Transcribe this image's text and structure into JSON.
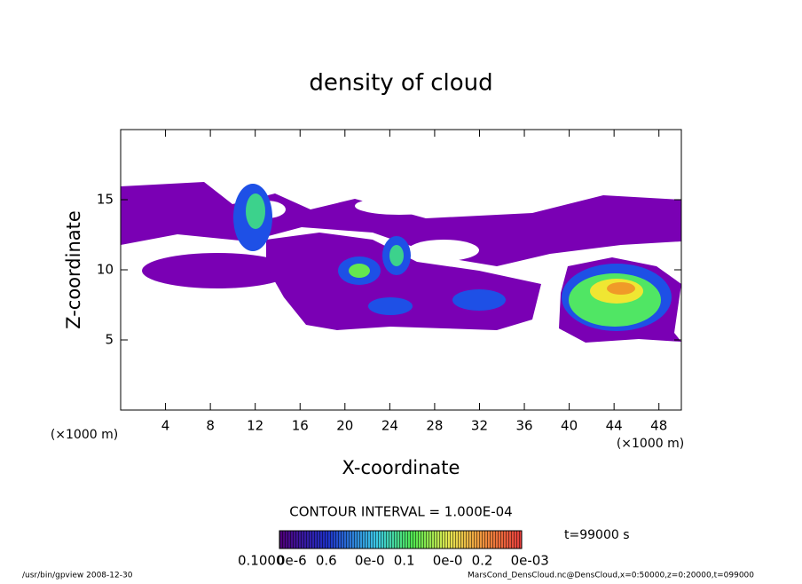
{
  "chart_data": {
    "type": "contour",
    "title": "density of cloud",
    "x_label": "X-coordinate",
    "y_label": "Z-coordinate",
    "x_unit_left": "(×1000 m)",
    "x_unit_right": "(×1000 m)",
    "xlim": [
      0,
      50
    ],
    "ylim": [
      0,
      20
    ],
    "xticks": [
      4,
      8,
      12,
      16,
      20,
      24,
      28,
      32,
      36,
      40,
      44,
      48
    ],
    "yticks": [
      5,
      10,
      15
    ],
    "contour_interval": "CONTOUR INTERVAL = 1.000E-04",
    "time": "t=99000 s",
    "colorbar_labels": [
      "0.1000",
      "0e-6",
      "0.6",
      "0e-0",
      "0.1",
      "0e-0",
      "0.2",
      "0e-03"
    ],
    "footer_left": "/usr/bin/gpview   2008-12-30",
    "footer_right": "MarsCond_DensCloud.nc@DensCloud,x=0:50000,z=0:20000,t=099000"
  }
}
